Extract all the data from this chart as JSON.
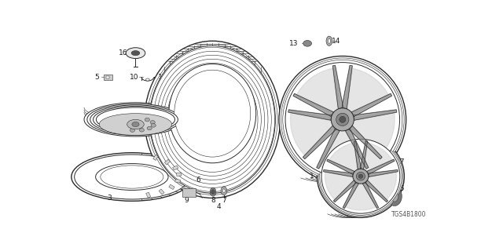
{
  "background_color": "#ffffff",
  "watermark": "TGS4B1800",
  "line_color": "#2a2a2a",
  "label_color": "#1a1a1a",
  "label_fontsize": 6.5,
  "fig_width": 6.4,
  "fig_height": 3.2,
  "dpi": 100
}
